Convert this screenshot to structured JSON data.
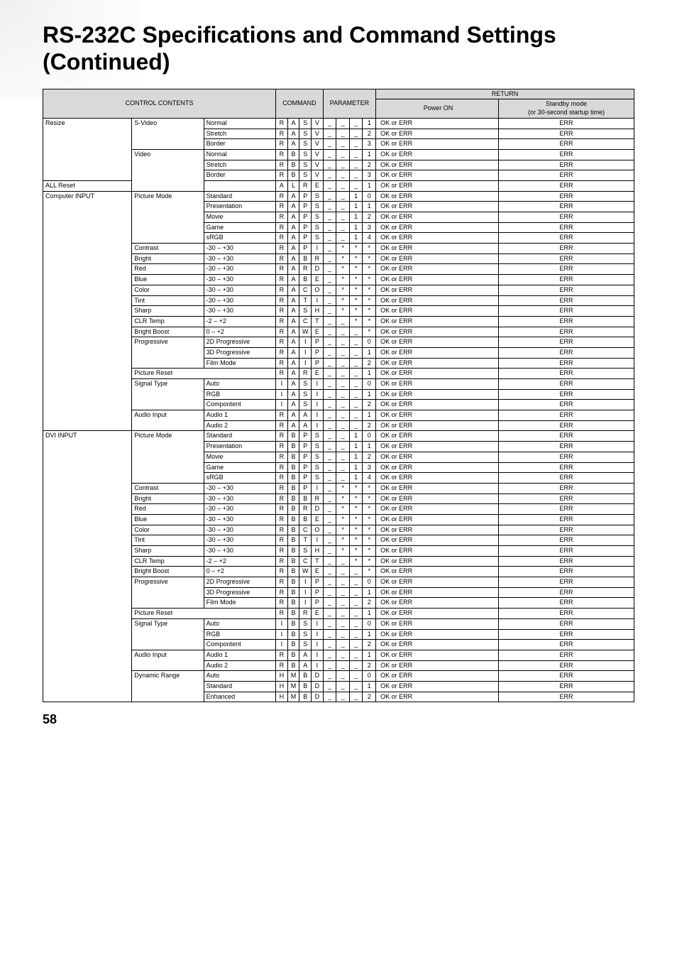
{
  "title": "RS-232C Specifications and Command Settings (Continued)",
  "page_number": "58",
  "headers": {
    "control_contents": "CONTROL CONTENTS",
    "command": "COMMAND",
    "parameter": "PARAMETER",
    "return": "RETURN",
    "power_on": "Power ON",
    "standby": "Standby mode\n(or 30-second startup time)"
  },
  "rows": [
    {
      "c1": "Resize",
      "c2": "S-Video",
      "c3": "Normal",
      "cmd": [
        "R",
        "A",
        "S",
        "V"
      ],
      "par": [
        "_",
        "_",
        "_",
        "1"
      ],
      "on": "OK or ERR",
      "sb": "ERR",
      "s1": true,
      "s2": true
    },
    {
      "c1": "",
      "c2": "",
      "c3": "Stretch",
      "cmd": [
        "R",
        "A",
        "S",
        "V"
      ],
      "par": [
        "_",
        "_",
        "_",
        "2"
      ],
      "on": "OK or ERR",
      "sb": "ERR"
    },
    {
      "c1": "",
      "c2": "",
      "c3": "Border",
      "cmd": [
        "R",
        "A",
        "S",
        "V"
      ],
      "par": [
        "_",
        "_",
        "_",
        "3"
      ],
      "on": "OK or ERR",
      "sb": "ERR"
    },
    {
      "c1": "",
      "c2": "Video",
      "c3": "Normal",
      "cmd": [
        "R",
        "B",
        "S",
        "V"
      ],
      "par": [
        "_",
        "_",
        "_",
        "1"
      ],
      "on": "OK or ERR",
      "sb": "ERR",
      "s2": true
    },
    {
      "c1": "",
      "c2": "",
      "c3": "Stretch",
      "cmd": [
        "R",
        "B",
        "S",
        "V"
      ],
      "par": [
        "_",
        "_",
        "_",
        "2"
      ],
      "on": "OK or ERR",
      "sb": "ERR"
    },
    {
      "c1": "",
      "c2": "",
      "c3": "Border",
      "cmd": [
        "R",
        "B",
        "S",
        "V"
      ],
      "par": [
        "_",
        "_",
        "_",
        "3"
      ],
      "on": "OK or ERR",
      "sb": "ERR"
    },
    {
      "c1": "ALL Reset",
      "c2": "",
      "c3": "",
      "cmd": [
        "A",
        "L",
        "R",
        "E"
      ],
      "par": [
        "_",
        "_",
        "_",
        "1"
      ],
      "on": "OK or ERR",
      "sb": "ERR",
      "s1": true,
      "span1": 3
    },
    {
      "c1": "Computer INPUT",
      "c2": "Picture Mode",
      "c3": "Standard",
      "cmd": [
        "R",
        "A",
        "P",
        "S"
      ],
      "par": [
        "_",
        "_",
        "1",
        "0"
      ],
      "on": "OK or ERR",
      "sb": "ERR",
      "s1": true,
      "s2": true
    },
    {
      "c1": "",
      "c2": "",
      "c3": "Presentation",
      "cmd": [
        "R",
        "A",
        "P",
        "S"
      ],
      "par": [
        "_",
        "_",
        "1",
        "1"
      ],
      "on": "OK or ERR",
      "sb": "ERR"
    },
    {
      "c1": "",
      "c2": "",
      "c3": "Movie",
      "cmd": [
        "R",
        "A",
        "P",
        "S"
      ],
      "par": [
        "_",
        "_",
        "1",
        "2"
      ],
      "on": "OK or ERR",
      "sb": "ERR"
    },
    {
      "c1": "",
      "c2": "",
      "c3": "Game",
      "cmd": [
        "R",
        "A",
        "P",
        "S"
      ],
      "par": [
        "_",
        "_",
        "1",
        "3"
      ],
      "on": "OK or ERR",
      "sb": "ERR"
    },
    {
      "c1": "",
      "c2": "",
      "c3": "sRGB",
      "cmd": [
        "R",
        "A",
        "P",
        "S"
      ],
      "par": [
        "_",
        "_",
        "1",
        "4"
      ],
      "on": "OK or ERR",
      "sb": "ERR"
    },
    {
      "c1": "",
      "c2": "Contrast",
      "c3": "-30 – +30",
      "cmd": [
        "R",
        "A",
        "P",
        "I"
      ],
      "par": [
        "_",
        "*",
        "*",
        "*"
      ],
      "on": "OK or ERR",
      "sb": "ERR",
      "s2": true
    },
    {
      "c1": "",
      "c2": "Bright",
      "c3": "-30 – +30",
      "cmd": [
        "R",
        "A",
        "B",
        "R"
      ],
      "par": [
        "_",
        "*",
        "*",
        "*"
      ],
      "on": "OK or ERR",
      "sb": "ERR",
      "s2": true
    },
    {
      "c1": "",
      "c2": "Red",
      "c3": "-30 – +30",
      "cmd": [
        "R",
        "A",
        "R",
        "D"
      ],
      "par": [
        "_",
        "*",
        "*",
        "*"
      ],
      "on": "OK or ERR",
      "sb": "ERR",
      "s2": true
    },
    {
      "c1": "",
      "c2": "Blue",
      "c3": "-30 – +30",
      "cmd": [
        "R",
        "A",
        "B",
        "E"
      ],
      "par": [
        "_",
        "*",
        "*",
        "*"
      ],
      "on": "OK or ERR",
      "sb": "ERR",
      "s2": true
    },
    {
      "c1": "",
      "c2": "Color",
      "c3": "-30 – +30",
      "cmd": [
        "R",
        "A",
        "C",
        "O"
      ],
      "par": [
        "_",
        "*",
        "*",
        "*"
      ],
      "on": "OK or ERR",
      "sb": "ERR",
      "s2": true
    },
    {
      "c1": "",
      "c2": "Tint",
      "c3": "-30 – +30",
      "cmd": [
        "R",
        "A",
        "T",
        "I"
      ],
      "par": [
        "_",
        "*",
        "*",
        "*"
      ],
      "on": "OK or ERR",
      "sb": "ERR",
      "s2": true
    },
    {
      "c1": "",
      "c2": "Sharp",
      "c3": "-30 – +30",
      "cmd": [
        "R",
        "A",
        "S",
        "H"
      ],
      "par": [
        "_",
        "*",
        "*",
        "*"
      ],
      "on": "OK or ERR",
      "sb": "ERR",
      "s2": true
    },
    {
      "c1": "",
      "c2": "CLR Temp",
      "c3": "-2 – +2",
      "cmd": [
        "R",
        "A",
        "C",
        "T"
      ],
      "par": [
        "_",
        "_",
        "*",
        "*"
      ],
      "on": "OK or ERR",
      "sb": "ERR",
      "s2": true
    },
    {
      "c1": "",
      "c2": "Bright Boost",
      "c3": "0 – +2",
      "cmd": [
        "R",
        "A",
        "W",
        "E"
      ],
      "par": [
        "_",
        "_",
        "_",
        "*"
      ],
      "on": "OK or ERR",
      "sb": "ERR",
      "s2": true
    },
    {
      "c1": "",
      "c2": "Progressive",
      "c3": "2D Progressive",
      "cmd": [
        "R",
        "A",
        "I",
        "P"
      ],
      "par": [
        "_",
        "_",
        "_",
        "0"
      ],
      "on": "OK or ERR",
      "sb": "ERR",
      "s2": true
    },
    {
      "c1": "",
      "c2": "",
      "c3": "3D Progressive",
      "cmd": [
        "R",
        "A",
        "I",
        "P"
      ],
      "par": [
        "_",
        "_",
        "_",
        "1"
      ],
      "on": "OK or ERR",
      "sb": "ERR"
    },
    {
      "c1": "",
      "c2": "",
      "c3": "Film Mode",
      "cmd": [
        "R",
        "A",
        "I",
        "P"
      ],
      "par": [
        "_",
        "_",
        "_",
        "2"
      ],
      "on": "OK or ERR",
      "sb": "ERR"
    },
    {
      "c1": "",
      "c2": "Picture Reset",
      "c3": "",
      "cmd": [
        "R",
        "A",
        "R",
        "E"
      ],
      "par": [
        "_",
        "_",
        "_",
        "1"
      ],
      "on": "OK or ERR",
      "sb": "ERR",
      "s2": true,
      "span2": 2
    },
    {
      "c1": "",
      "c2": "Signal Type",
      "c3": "Auto",
      "cmd": [
        "I",
        "A",
        "S",
        "I"
      ],
      "par": [
        "_",
        "_",
        "_",
        "0"
      ],
      "on": "OK or ERR",
      "sb": "ERR",
      "s2": true
    },
    {
      "c1": "",
      "c2": "",
      "c3": "RGB",
      "cmd": [
        "I",
        "A",
        "S",
        "I"
      ],
      "par": [
        "_",
        "_",
        "_",
        "1"
      ],
      "on": "OK or ERR",
      "sb": "ERR"
    },
    {
      "c1": "",
      "c2": "",
      "c3": "Compontent",
      "cmd": [
        "I",
        "A",
        "S",
        "I"
      ],
      "par": [
        "_",
        "_",
        "_",
        "2"
      ],
      "on": "OK or ERR",
      "sb": "ERR"
    },
    {
      "c1": "",
      "c2": "Audio Input",
      "c3": "Audio 1",
      "cmd": [
        "R",
        "A",
        "A",
        "I"
      ],
      "par": [
        "_",
        "_",
        "_",
        "1"
      ],
      "on": "OK or ERR",
      "sb": "ERR",
      "s2": true
    },
    {
      "c1": "",
      "c2": "",
      "c3": "Audio 2",
      "cmd": [
        "R",
        "A",
        "A",
        "I"
      ],
      "par": [
        "_",
        "_",
        "_",
        "2"
      ],
      "on": "OK or ERR",
      "sb": "ERR"
    },
    {
      "c1": "DVI INPUT",
      "c2": "Picture Mode",
      "c3": "Standard",
      "cmd": [
        "R",
        "B",
        "P",
        "S"
      ],
      "par": [
        "_",
        "_",
        "1",
        "0"
      ],
      "on": "OK or ERR",
      "sb": "ERR",
      "s1": true,
      "s2": true
    },
    {
      "c1": "",
      "c2": "",
      "c3": "Presentation",
      "cmd": [
        "R",
        "B",
        "P",
        "S"
      ],
      "par": [
        "_",
        "_",
        "1",
        "1"
      ],
      "on": "OK or ERR",
      "sb": "ERR"
    },
    {
      "c1": "",
      "c2": "",
      "c3": "Movie",
      "cmd": [
        "R",
        "B",
        "P",
        "S"
      ],
      "par": [
        "_",
        "_",
        "1",
        "2"
      ],
      "on": "OK or ERR",
      "sb": "ERR"
    },
    {
      "c1": "",
      "c2": "",
      "c3": "Game",
      "cmd": [
        "R",
        "B",
        "P",
        "S"
      ],
      "par": [
        "_",
        "_",
        "1",
        "3"
      ],
      "on": "OK or ERR",
      "sb": "ERR"
    },
    {
      "c1": "",
      "c2": "",
      "c3": "sRGB",
      "cmd": [
        "R",
        "B",
        "P",
        "S"
      ],
      "par": [
        "_",
        "_",
        "1",
        "4"
      ],
      "on": "OK or ERR",
      "sb": "ERR"
    },
    {
      "c1": "",
      "c2": "Contrast",
      "c3": "-30 – +30",
      "cmd": [
        "R",
        "B",
        "P",
        "I"
      ],
      "par": [
        "_",
        "*",
        "*",
        "*"
      ],
      "on": "OK or ERR",
      "sb": "ERR",
      "s2": true
    },
    {
      "c1": "",
      "c2": "Bright",
      "c3": "-30 – +30",
      "cmd": [
        "R",
        "B",
        "B",
        "R"
      ],
      "par": [
        "_",
        "*",
        "*",
        "*"
      ],
      "on": "OK or ERR",
      "sb": "ERR",
      "s2": true
    },
    {
      "c1": "",
      "c2": "Red",
      "c3": "-30 – +30",
      "cmd": [
        "R",
        "B",
        "R",
        "D"
      ],
      "par": [
        "_",
        "*",
        "*",
        "*"
      ],
      "on": "OK or ERR",
      "sb": "ERR",
      "s2": true
    },
    {
      "c1": "",
      "c2": "Blue",
      "c3": "-30 – +30",
      "cmd": [
        "R",
        "B",
        "B",
        "E"
      ],
      "par": [
        "_",
        "*",
        "*",
        "*"
      ],
      "on": "OK or ERR",
      "sb": "ERR",
      "s2": true
    },
    {
      "c1": "",
      "c2": "Color",
      "c3": "-30 – +30",
      "cmd": [
        "R",
        "B",
        "C",
        "O"
      ],
      "par": [
        "_",
        "*",
        "*",
        "*"
      ],
      "on": "OK or ERR",
      "sb": "ERR",
      "s2": true
    },
    {
      "c1": "",
      "c2": "Tint",
      "c3": "-30 – +30",
      "cmd": [
        "R",
        "B",
        "T",
        "I"
      ],
      "par": [
        "_",
        "*",
        "*",
        "*"
      ],
      "on": "OK or ERR",
      "sb": "ERR",
      "s2": true
    },
    {
      "c1": "",
      "c2": "Sharp",
      "c3": "-30 – +30",
      "cmd": [
        "R",
        "B",
        "S",
        "H"
      ],
      "par": [
        "_",
        "*",
        "*",
        "*"
      ],
      "on": "OK or ERR",
      "sb": "ERR",
      "s2": true
    },
    {
      "c1": "",
      "c2": "CLR Temp",
      "c3": "-2 – +2",
      "cmd": [
        "R",
        "B",
        "C",
        "T"
      ],
      "par": [
        "_",
        "_",
        "*",
        "*"
      ],
      "on": "OK or ERR",
      "sb": "ERR",
      "s2": true
    },
    {
      "c1": "",
      "c2": "Bright Boost",
      "c3": "0 – +2",
      "cmd": [
        "R",
        "B",
        "W",
        "E"
      ],
      "par": [
        "_",
        "_",
        "_",
        "*"
      ],
      "on": "OK or ERR",
      "sb": "ERR",
      "s2": true
    },
    {
      "c1": "",
      "c2": "Progressive",
      "c3": "2D Progressive",
      "cmd": [
        "R",
        "B",
        "I",
        "P"
      ],
      "par": [
        "_",
        "_",
        "_",
        "0"
      ],
      "on": "OK or ERR",
      "sb": "ERR",
      "s2": true
    },
    {
      "c1": "",
      "c2": "",
      "c3": "3D Progressive",
      "cmd": [
        "R",
        "B",
        "I",
        "P"
      ],
      "par": [
        "_",
        "_",
        "_",
        "1"
      ],
      "on": "OK or ERR",
      "sb": "ERR"
    },
    {
      "c1": "",
      "c2": "",
      "c3": "Film Mode",
      "cmd": [
        "R",
        "B",
        "I",
        "P"
      ],
      "par": [
        "_",
        "_",
        "_",
        "2"
      ],
      "on": "OK or ERR",
      "sb": "ERR"
    },
    {
      "c1": "",
      "c2": "Picture Reset",
      "c3": "",
      "cmd": [
        "R",
        "B",
        "R",
        "E"
      ],
      "par": [
        "_",
        "_",
        "_",
        "1"
      ],
      "on": "OK or ERR",
      "sb": "ERR",
      "s2": true,
      "span2": 2
    },
    {
      "c1": "",
      "c2": "Signal Type",
      "c3": "Auto",
      "cmd": [
        "I",
        "B",
        "S",
        "I"
      ],
      "par": [
        "_",
        "_",
        "_",
        "0"
      ],
      "on": "OK or ERR",
      "sb": "ERR",
      "s2": true
    },
    {
      "c1": "",
      "c2": "",
      "c3": "RGB",
      "cmd": [
        "I",
        "B",
        "S",
        "I"
      ],
      "par": [
        "_",
        "_",
        "_",
        "1"
      ],
      "on": "OK or ERR",
      "sb": "ERR"
    },
    {
      "c1": "",
      "c2": "",
      "c3": "Compontent",
      "cmd": [
        "I",
        "B",
        "S",
        "I"
      ],
      "par": [
        "_",
        "_",
        "_",
        "2"
      ],
      "on": "OK or ERR",
      "sb": "ERR"
    },
    {
      "c1": "",
      "c2": "Audio Input",
      "c3": "Audio 1",
      "cmd": [
        "R",
        "B",
        "A",
        "I"
      ],
      "par": [
        "_",
        "_",
        "_",
        "1"
      ],
      "on": "OK or ERR",
      "sb": "ERR",
      "s2": true
    },
    {
      "c1": "",
      "c2": "",
      "c3": "Audio 2",
      "cmd": [
        "R",
        "B",
        "A",
        "I"
      ],
      "par": [
        "_",
        "_",
        "_",
        "2"
      ],
      "on": "OK or ERR",
      "sb": "ERR"
    },
    {
      "c1": "",
      "c2": "Dynamic Range",
      "c3": "Auto",
      "cmd": [
        "H",
        "M",
        "B",
        "D"
      ],
      "par": [
        "_",
        "_",
        "_",
        "0"
      ],
      "on": "OK or ERR",
      "sb": "ERR",
      "s2": true
    },
    {
      "c1": "",
      "c2": "",
      "c3": "Standard",
      "cmd": [
        "H",
        "M",
        "B",
        "D"
      ],
      "par": [
        "_",
        "_",
        "_",
        "1"
      ],
      "on": "OK or ERR",
      "sb": "ERR"
    },
    {
      "c1": "",
      "c2": "",
      "c3": "Enhanced",
      "cmd": [
        "H",
        "M",
        "B",
        "D"
      ],
      "par": [
        "_",
        "_",
        "_",
        "2"
      ],
      "on": "OK or ERR",
      "sb": "ERR"
    }
  ]
}
